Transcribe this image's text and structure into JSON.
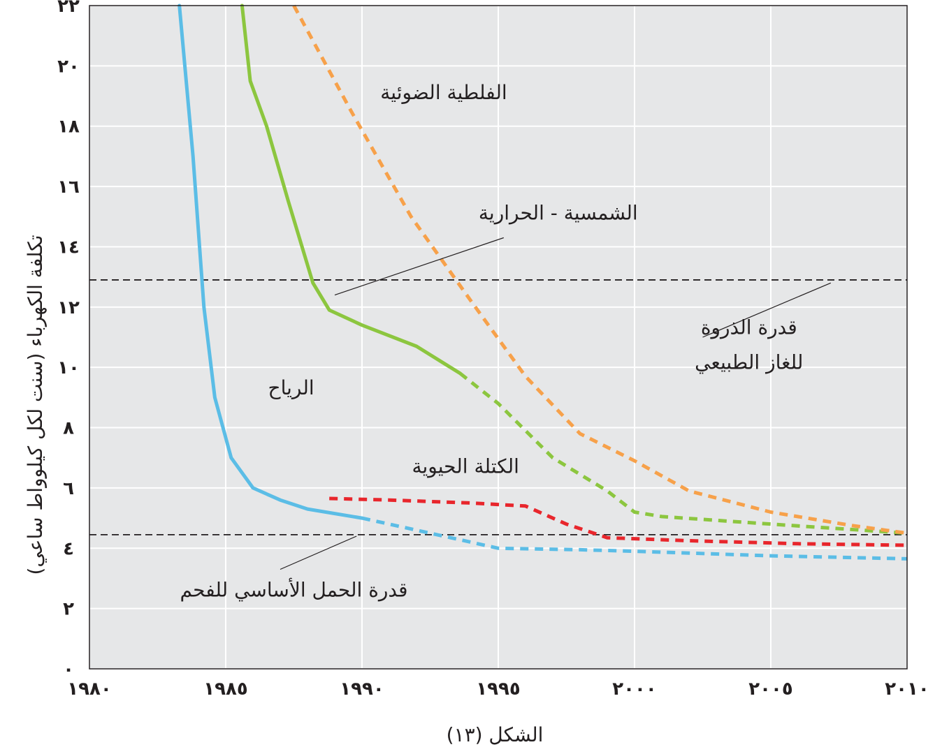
{
  "chart_data": {
    "type": "line",
    "title": "",
    "caption": "الشكل (١٣)",
    "xlabel": "",
    "ylabel": "تكلفة الكهرباء (سنت لكل كيلوواط ساعي)",
    "xlim": [
      1980,
      2010
    ],
    "ylim": [
      0,
      22
    ],
    "x_ticks": [
      1980,
      1985,
      1990,
      1995,
      2000,
      2005,
      2010
    ],
    "x_tick_labels": [
      "١٩٨٠",
      "١٩٨٥",
      "١٩٩٠",
      "١٩٩٥",
      "٢٠٠٠",
      "٢٠٠٥",
      "٢٠١٠"
    ],
    "y_ticks": [
      0,
      2,
      4,
      6,
      8,
      10,
      12,
      14,
      16,
      18,
      20,
      22
    ],
    "y_tick_labels": [
      "٠",
      "٢",
      "٤",
      "٦",
      "٨",
      "١٠",
      "١٢",
      "١٤",
      "١٦",
      "١٨",
      "٢٠",
      "٢٢"
    ],
    "grid": true,
    "series": [
      {
        "name": "الرياح",
        "color": "#5bbde6",
        "values": [
          [
            1983.3,
            22
          ],
          [
            1983.8,
            17
          ],
          [
            1984.2,
            12
          ],
          [
            1984.6,
            9
          ],
          [
            1985.2,
            7
          ],
          [
            1986,
            6
          ],
          [
            1987,
            5.6
          ],
          [
            1988,
            5.3
          ],
          [
            1990,
            5.0
          ]
        ],
        "projected": [
          [
            1990,
            5.0
          ],
          [
            1992,
            4.6
          ],
          [
            1994,
            4.2
          ],
          [
            1995,
            4.0
          ],
          [
            1998,
            3.95
          ],
          [
            2000,
            3.9
          ],
          [
            2005,
            3.75
          ],
          [
            2010,
            3.65
          ]
        ]
      },
      {
        "name": "الكتلة الحيوية",
        "color": "#e8262c",
        "values": [],
        "projected": [
          [
            1988.8,
            5.65
          ],
          [
            1991,
            5.6
          ],
          [
            1994,
            5.5
          ],
          [
            1996,
            5.4
          ],
          [
            1997.5,
            4.8
          ],
          [
            1999,
            4.35
          ],
          [
            2002,
            4.25
          ],
          [
            2006,
            4.15
          ],
          [
            2010,
            4.1
          ]
        ]
      },
      {
        "name": "الشمسية - الحرارية",
        "color": "#8cc63f",
        "values": [
          [
            1985.6,
            22
          ],
          [
            1985.9,
            19.5
          ],
          [
            1986.5,
            18
          ],
          [
            1987.3,
            15.5
          ],
          [
            1988.2,
            12.8
          ],
          [
            1988.8,
            11.9
          ],
          [
            1990,
            11.4
          ],
          [
            1992,
            10.7
          ],
          [
            1993.6,
            9.8
          ]
        ],
        "projected": [
          [
            1993.6,
            9.8
          ],
          [
            1995,
            8.8
          ],
          [
            1997,
            7.0
          ],
          [
            1999,
            5.9
          ],
          [
            2000,
            5.2
          ],
          [
            2001,
            5.05
          ],
          [
            2005,
            4.8
          ],
          [
            2010,
            4.5
          ]
        ]
      },
      {
        "name": "الفلطية الضوئية",
        "color": "#f7a14a",
        "values": [],
        "projected": [
          [
            1987.5,
            22
          ],
          [
            1989.6,
            18.5
          ],
          [
            1991.8,
            15
          ],
          [
            1994,
            12.2
          ],
          [
            1996,
            9.7
          ],
          [
            1998,
            7.8
          ],
          [
            2000,
            6.9
          ],
          [
            2002,
            5.9
          ],
          [
            2005,
            5.2
          ],
          [
            2008,
            4.75
          ],
          [
            2010,
            4.5
          ]
        ]
      }
    ],
    "reference_lines": [
      {
        "name": "قدرة الذروة للغاز الطبيعي",
        "lines": [
          "قدرة الذروة",
          "للغاز الطبيعي"
        ],
        "y": 12.9
      },
      {
        "name": "قدرة الحمل الأساسي للفحم",
        "lines": [
          "قدرة الحمل الأساسي للفحم"
        ],
        "y": 4.45
      }
    ],
    "annotations": [
      {
        "text": "الفلطية الضوئية",
        "x": 1993,
        "y": 18.9
      },
      {
        "text": "الشمسية - الحرارية",
        "x": 1997.2,
        "y": 14.9
      },
      {
        "text": "الرياح",
        "x": 1987.4,
        "y": 9.1
      },
      {
        "text": "الكتلة الحيوية",
        "x": 1993.8,
        "y": 6.5
      },
      {
        "text": "قدرة الذروة",
        "x": 2004.2,
        "y": 11.1
      },
      {
        "text": "للغاز الطبيعي",
        "x": 2004.2,
        "y": 9.95
      },
      {
        "text": "قدرة الحمل الأساسي للفحم",
        "x": 1987.5,
        "y": 2.4
      }
    ],
    "leader_lines": [
      {
        "from": [
          1995.2,
          14.3
        ],
        "to": [
          1989,
          12.4
        ]
      },
      {
        "from": [
          2002.5,
          11.0
        ],
        "to": [
          2007.2,
          12.8
        ]
      },
      {
        "from": [
          1987,
          3.3
        ],
        "to": [
          1989.8,
          4.4
        ]
      }
    ]
  }
}
